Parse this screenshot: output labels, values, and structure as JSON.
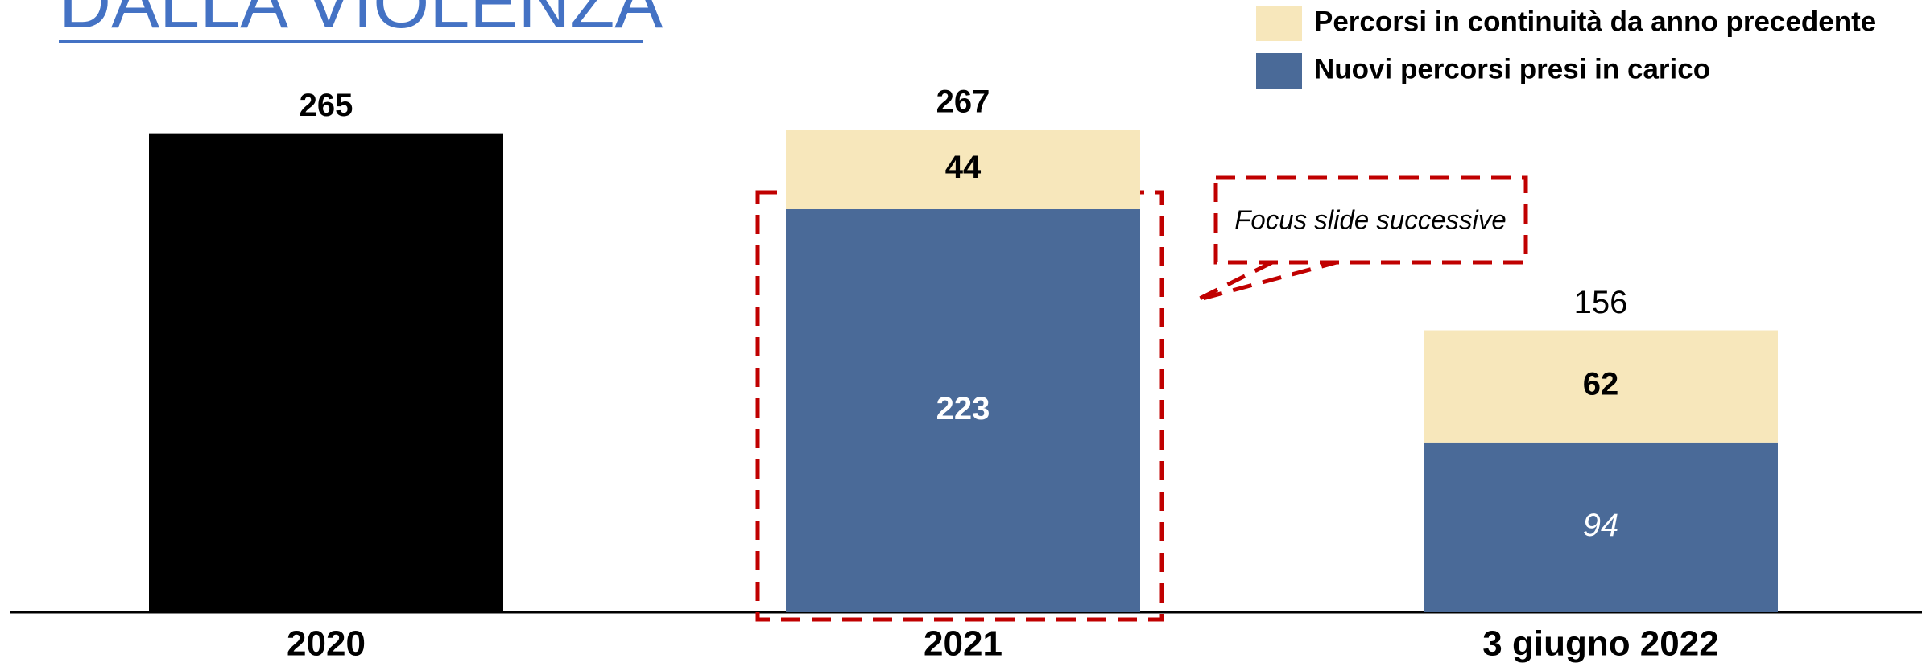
{
  "chart_data": {
    "type": "stacked-bar",
    "title": "DALLA VIOLENZA",
    "categories": [
      "2020",
      "2021",
      "3 giugno 2022"
    ],
    "series": [
      {
        "color": "#000000",
        "values": [
          265,
          null,
          null
        ]
      },
      {
        "name": "Nuovi percorsi presi in carico",
        "color": "#4a6a98",
        "values": [
          null,
          223,
          94
        ]
      },
      {
        "name": "Percorsi in continuità da anno precedente",
        "color": "#f7e7bb",
        "values": [
          null,
          44,
          62
        ]
      }
    ],
    "totals": [
      265,
      267,
      156
    ],
    "ylim": [
      0,
      300
    ],
    "annotation": "Focus slide successive"
  }
}
